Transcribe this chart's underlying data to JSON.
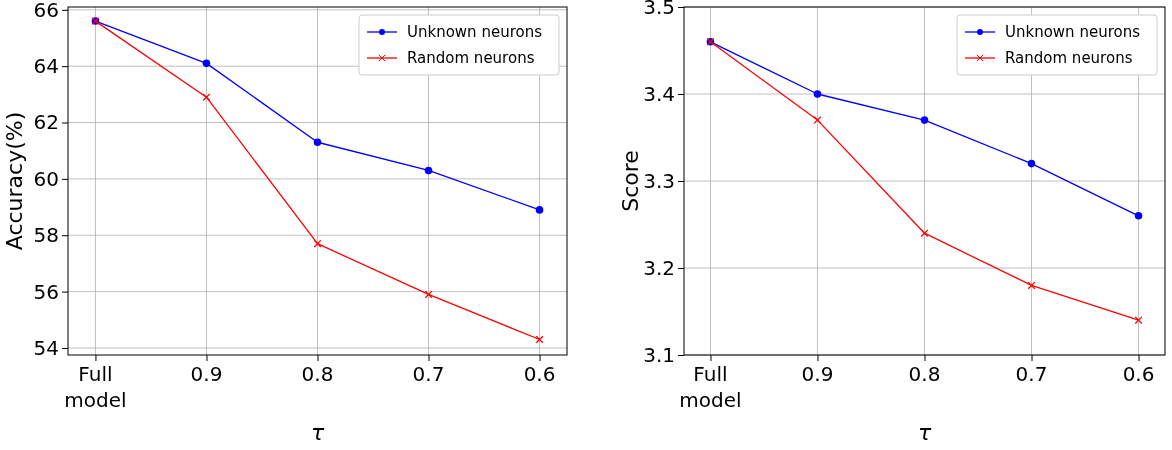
{
  "chart_data": [
    {
      "type": "line",
      "xlabel": "τ",
      "ylabel": "Accuracy(%)",
      "categories": [
        "Full\nmodel",
        "0.9",
        "0.8",
        "0.7",
        "0.6"
      ],
      "ylim": [
        53.75,
        66.1
      ],
      "yticks": [
        54,
        56,
        58,
        60,
        62,
        64,
        66
      ],
      "grid": true,
      "legend": "top right",
      "series": [
        {
          "name": "Unknown neurons",
          "color": "#0000ff",
          "marker": "circle",
          "values": [
            65.6,
            64.1,
            61.3,
            60.3,
            58.9
          ]
        },
        {
          "name": "Random neurons",
          "color": "#ff0000",
          "marker": "cross",
          "values": [
            65.6,
            62.9,
            57.7,
            55.9,
            54.3
          ]
        }
      ]
    },
    {
      "type": "line",
      "xlabel": "τ",
      "ylabel": "Score",
      "categories": [
        "Full\nmodel",
        "0.9",
        "0.8",
        "0.7",
        "0.6"
      ],
      "ylim": [
        3.1,
        3.5
      ],
      "yticks": [
        {
          "value": 3.1,
          "label": "3.1"
        },
        {
          "value": 3.2,
          "label": "3.2"
        },
        {
          "value": 3.3,
          "label": "3.3"
        },
        {
          "value": 3.4,
          "label": "3.4"
        },
        {
          "value": 3.5,
          "label": "3.5"
        }
      ],
      "grid": true,
      "legend": "top right",
      "series": [
        {
          "name": "Unknown neurons",
          "color": "#0000ff",
          "marker": "circle",
          "values": [
            3.46,
            3.4,
            3.37,
            3.32,
            3.26
          ]
        },
        {
          "name": "Random neurons",
          "color": "#ff0000",
          "marker": "cross",
          "values": [
            3.46,
            3.37,
            3.24,
            3.18,
            3.14
          ]
        }
      ]
    }
  ]
}
